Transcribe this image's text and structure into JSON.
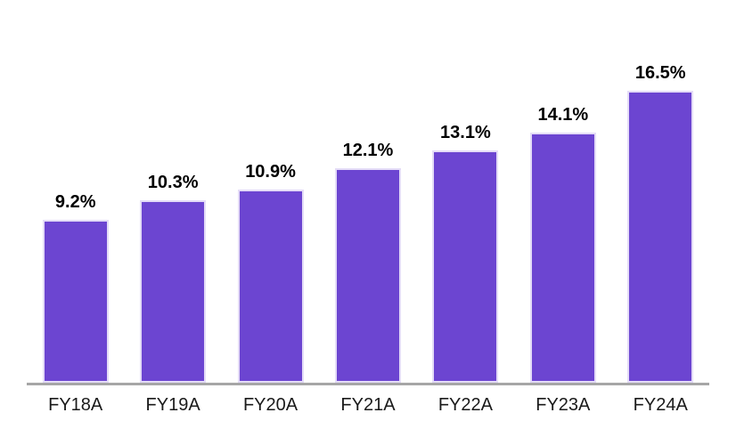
{
  "chart_data": {
    "type": "bar",
    "title": "",
    "xlabel": "",
    "ylabel": "",
    "categories": [
      "FY18A",
      "FY19A",
      "FY20A",
      "FY21A",
      "FY22A",
      "FY23A",
      "FY24A"
    ],
    "values": [
      9.2,
      10.3,
      10.9,
      12.1,
      13.1,
      14.1,
      16.5
    ],
    "data_labels": [
      "9.2%",
      "10.3%",
      "10.9%",
      "12.1%",
      "13.1%",
      "14.1%",
      "16.5%"
    ],
    "ylim": [
      0,
      21.6
    ],
    "grid": false,
    "legend": false,
    "y_axis_visible": false,
    "x_axis_visible": true,
    "colors": {
      "bar_fill": "#6C45D1",
      "bar_border": "#E4DCF7",
      "axis_line": "#A6A6A6",
      "data_label": "#000000",
      "tick_label": "#1A1A1A",
      "background": "#FFFFFF"
    }
  }
}
